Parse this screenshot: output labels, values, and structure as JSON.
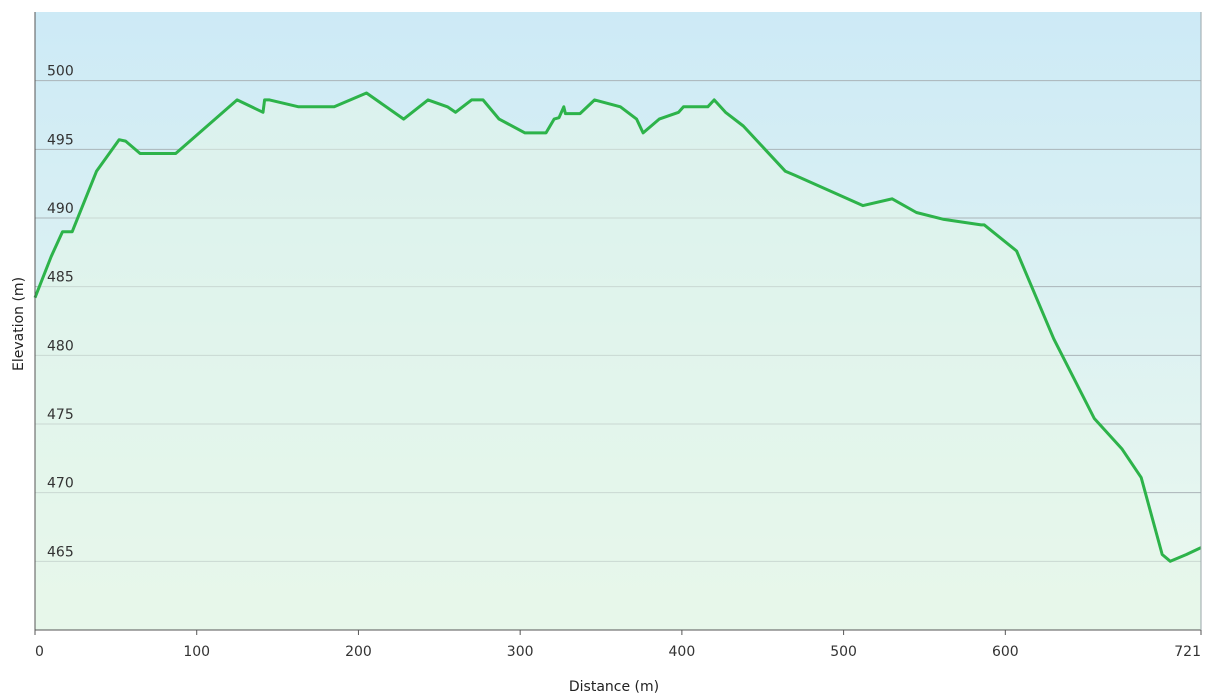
{
  "chart_data": {
    "type": "area",
    "title": "",
    "xlabel": "Distance (m)",
    "ylabel": "Elevation (m)",
    "xlim": [
      0,
      721
    ],
    "ylim": [
      460,
      505
    ],
    "x_ticks": [
      0,
      100,
      200,
      300,
      400,
      500,
      600,
      721
    ],
    "y_ticks": [
      465,
      470,
      475,
      480,
      485,
      490,
      495,
      500
    ],
    "grid": "horizontal",
    "legend": "none",
    "colors": {
      "line": "#2db34a",
      "fill_top": "#cdeaf6",
      "fill_bottom": "#ecf9ee",
      "grid": "#aab4b8",
      "axis": "#555555"
    },
    "series": [
      {
        "x": [
          0,
          10,
          17,
          23,
          38,
          52,
          56,
          65,
          78,
          87,
          125,
          141,
          142,
          145,
          163,
          185,
          205,
          228,
          243,
          255,
          260,
          270,
          277,
          287,
          303,
          316,
          321,
          324,
          327,
          328,
          329,
          337,
          346,
          362,
          372,
          376,
          386,
          398,
          401,
          416,
          420,
          427,
          438,
          464,
          470,
          512,
          530,
          545,
          562,
          585,
          587,
          607,
          630,
          655,
          672,
          684,
          697,
          702,
          712,
          721
        ],
        "y": [
          484.2,
          487.2,
          489,
          489,
          493.4,
          495.7,
          495.6,
          494.7,
          494.7,
          494.7,
          498.6,
          497.7,
          498.6,
          498.6,
          498.1,
          498.1,
          499.1,
          497.2,
          498.6,
          498.1,
          497.7,
          498.6,
          498.6,
          497.2,
          496.2,
          496.2,
          497.2,
          497.3,
          498.1,
          497.6,
          497.6,
          497.6,
          498.6,
          498.1,
          497.2,
          496.2,
          497.2,
          497.7,
          498.1,
          498.1,
          498.6,
          497.7,
          496.7,
          493.4,
          493.1,
          490.9,
          491.4,
          490.4,
          489.9,
          489.5,
          489.5,
          487.6,
          481.2,
          475.4,
          473.2,
          471.1,
          465.5,
          465,
          465.5,
          466
        ]
      }
    ]
  }
}
